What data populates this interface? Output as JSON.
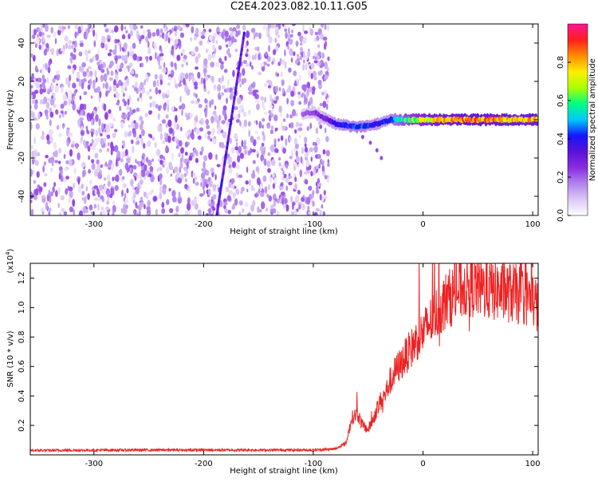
{
  "title": "C2E4.2023.082.10.11.G05",
  "colors": {
    "line": "#ee2222",
    "spectrum_scale": [
      "#ffffff",
      "#dcc8f5",
      "#b084ee",
      "#8a2be2",
      "#5a12d8",
      "#1515ff",
      "#00c8ff",
      "#00ff80",
      "#aaff00",
      "#ffee00",
      "#ff8c00",
      "#ff1e1e",
      "#ff1493"
    ]
  },
  "chart_data": [
    {
      "type": "heatmap",
      "xlabel": "Height of straight line (km)",
      "ylabel": "Frequency (Hz)",
      "xlim": [
        -358,
        105
      ],
      "ylim": [
        -50,
        50
      ],
      "x_ticks": [
        -300,
        -200,
        -100,
        0,
        100
      ],
      "x_tick_labels": [
        "-300",
        "-200",
        "-100",
        "0",
        "100"
      ],
      "y_ticks": [
        -40,
        -20,
        0,
        20,
        40
      ],
      "y_tick_labels": [
        "-40",
        "-20",
        "0",
        "20",
        "40"
      ],
      "features": {
        "noise_region_x": [
          -358,
          -90
        ],
        "noise_level": 0.12,
        "streak": {
          "from": [
            -188,
            -50
          ],
          "to": [
            -163,
            45
          ],
          "amplitude": 0.25
        },
        "track_points": [
          [
            -110,
            3,
            0.2
          ],
          [
            -100,
            4,
            0.25
          ],
          [
            -90,
            1,
            0.3
          ],
          [
            -80,
            -2,
            0.4
          ],
          [
            -70,
            -3,
            0.45
          ],
          [
            -60,
            -4,
            0.5
          ],
          [
            -50,
            -3,
            0.45
          ],
          [
            -40,
            -2,
            0.4
          ],
          [
            -30,
            0,
            0.45
          ],
          [
            -20,
            0,
            0.6
          ],
          [
            0,
            0,
            0.75
          ],
          [
            20,
            0,
            0.85
          ],
          [
            40,
            0,
            0.9
          ],
          [
            60,
            0,
            0.88
          ],
          [
            80,
            0,
            0.86
          ],
          [
            105,
            0,
            0.85
          ]
        ],
        "tail_points": [
          [
            -55,
            -9
          ],
          [
            -48,
            -12
          ],
          [
            -42,
            -16
          ],
          [
            -38,
            -20
          ]
        ]
      },
      "colorbar": {
        "label": "Normalized spectral amplitude",
        "range": [
          0,
          1
        ],
        "ticks": [
          0.0,
          0.2,
          0.4,
          0.6,
          0.8
        ],
        "tick_labels": [
          "0.0",
          "0.2",
          "0.4",
          "0.6",
          "0.8"
        ]
      }
    },
    {
      "type": "line",
      "xlabel": "Height of straight line (km)",
      "ylabel": "SNR (10 * v/v)",
      "y_scale_label": "(x10^4)",
      "xlim": [
        -358,
        105
      ],
      "ylim": [
        0,
        13000
      ],
      "x_ticks": [
        -300,
        -200,
        -100,
        0,
        100
      ],
      "x_tick_labels": [
        "-300",
        "-200",
        "-100",
        "0",
        "100"
      ],
      "y_ticks": [
        2000,
        4000,
        6000,
        8000,
        10000,
        12000
      ],
      "y_tick_labels": [
        "0.2",
        "0.4",
        "0.6",
        "0.8",
        "1.0",
        "1.2"
      ],
      "series": [
        {
          "x": [
            -358,
            -300,
            -250,
            -200,
            -150,
            -100,
            -80,
            -70,
            -65,
            -60,
            -55,
            -50,
            -45,
            -40,
            -35,
            -30,
            -25,
            -20,
            -15,
            -10,
            -5,
            0,
            10,
            20,
            30,
            40,
            50,
            60,
            70,
            80,
            90,
            100,
            105
          ],
          "values": [
            300,
            320,
            330,
            330,
            330,
            330,
            400,
            800,
            2500,
            2800,
            2000,
            1700,
            2500,
            3500,
            4000,
            5000,
            5700,
            6200,
            6800,
            7300,
            7900,
            8300,
            9400,
            10400,
            11000,
            11500,
            11400,
            11200,
            11100,
            11000,
            10800,
            10600,
            10000
          ]
        }
      ]
    }
  ]
}
